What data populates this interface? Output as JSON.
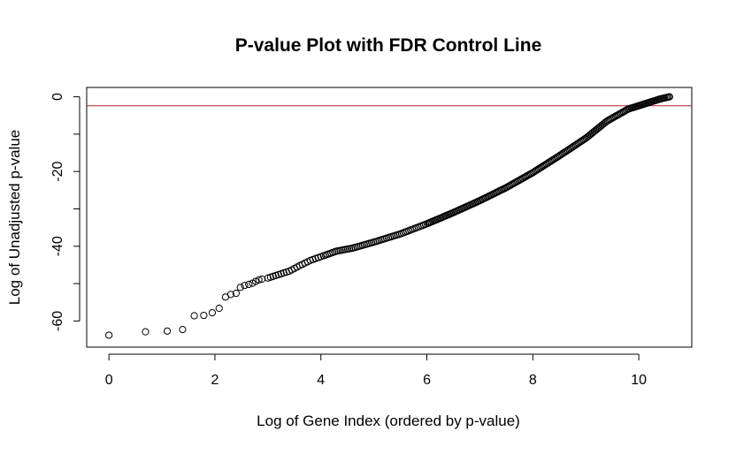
{
  "chart_data": {
    "type": "scatter",
    "title": "P-value Plot with FDR Control Line",
    "xlabel": "Log of Gene Index (ordered by p-value)",
    "ylabel": "Log of Unadjusted p-value",
    "xlim": [
      -0.42,
      11.0
    ],
    "ylim": [
      -67.0,
      2.5
    ],
    "x_ticks": [
      0,
      2,
      4,
      6,
      8,
      10
    ],
    "y_ticks": [
      0,
      -20,
      -40,
      -60
    ],
    "y_minor_ticks": [
      -10,
      -30,
      -50
    ],
    "grid": false,
    "legend": "none",
    "marker": "open-circle",
    "fdr_line": {
      "y": -2.4,
      "color": "#b22222"
    },
    "curve_points": [
      [
        0.0,
        -63.8
      ],
      [
        0.69,
        -62.9
      ],
      [
        1.1,
        -62.7
      ],
      [
        1.39,
        -62.3
      ],
      [
        1.61,
        -58.6
      ],
      [
        1.79,
        -58.5
      ],
      [
        1.95,
        -57.8
      ],
      [
        2.08,
        -56.6
      ],
      [
        2.2,
        -53.6
      ],
      [
        2.3,
        -52.9
      ],
      [
        2.4,
        -52.6
      ],
      [
        2.48,
        -51.0
      ],
      [
        2.56,
        -50.5
      ],
      [
        2.64,
        -50.2
      ],
      [
        2.71,
        -49.9
      ],
      [
        2.77,
        -49.4
      ],
      [
        2.83,
        -49.0
      ],
      [
        2.89,
        -48.8
      ],
      [
        3.0,
        -48.5
      ],
      [
        3.2,
        -47.6
      ],
      [
        3.4,
        -46.7
      ],
      [
        3.6,
        -45.2
      ],
      [
        3.8,
        -43.8
      ],
      [
        4.0,
        -42.8
      ],
      [
        4.3,
        -41.3
      ],
      [
        4.6,
        -40.5
      ],
      [
        5.0,
        -38.9
      ],
      [
        5.5,
        -36.7
      ],
      [
        6.0,
        -34.0
      ],
      [
        6.5,
        -31.0
      ],
      [
        7.0,
        -27.8
      ],
      [
        7.5,
        -24.3
      ],
      [
        8.0,
        -20.3
      ],
      [
        8.5,
        -15.8
      ],
      [
        9.0,
        -11.1
      ],
      [
        9.4,
        -6.5
      ],
      [
        9.8,
        -3.3
      ],
      [
        10.2,
        -1.5
      ],
      [
        10.4,
        -0.6
      ],
      [
        10.58,
        0.0
      ]
    ]
  }
}
